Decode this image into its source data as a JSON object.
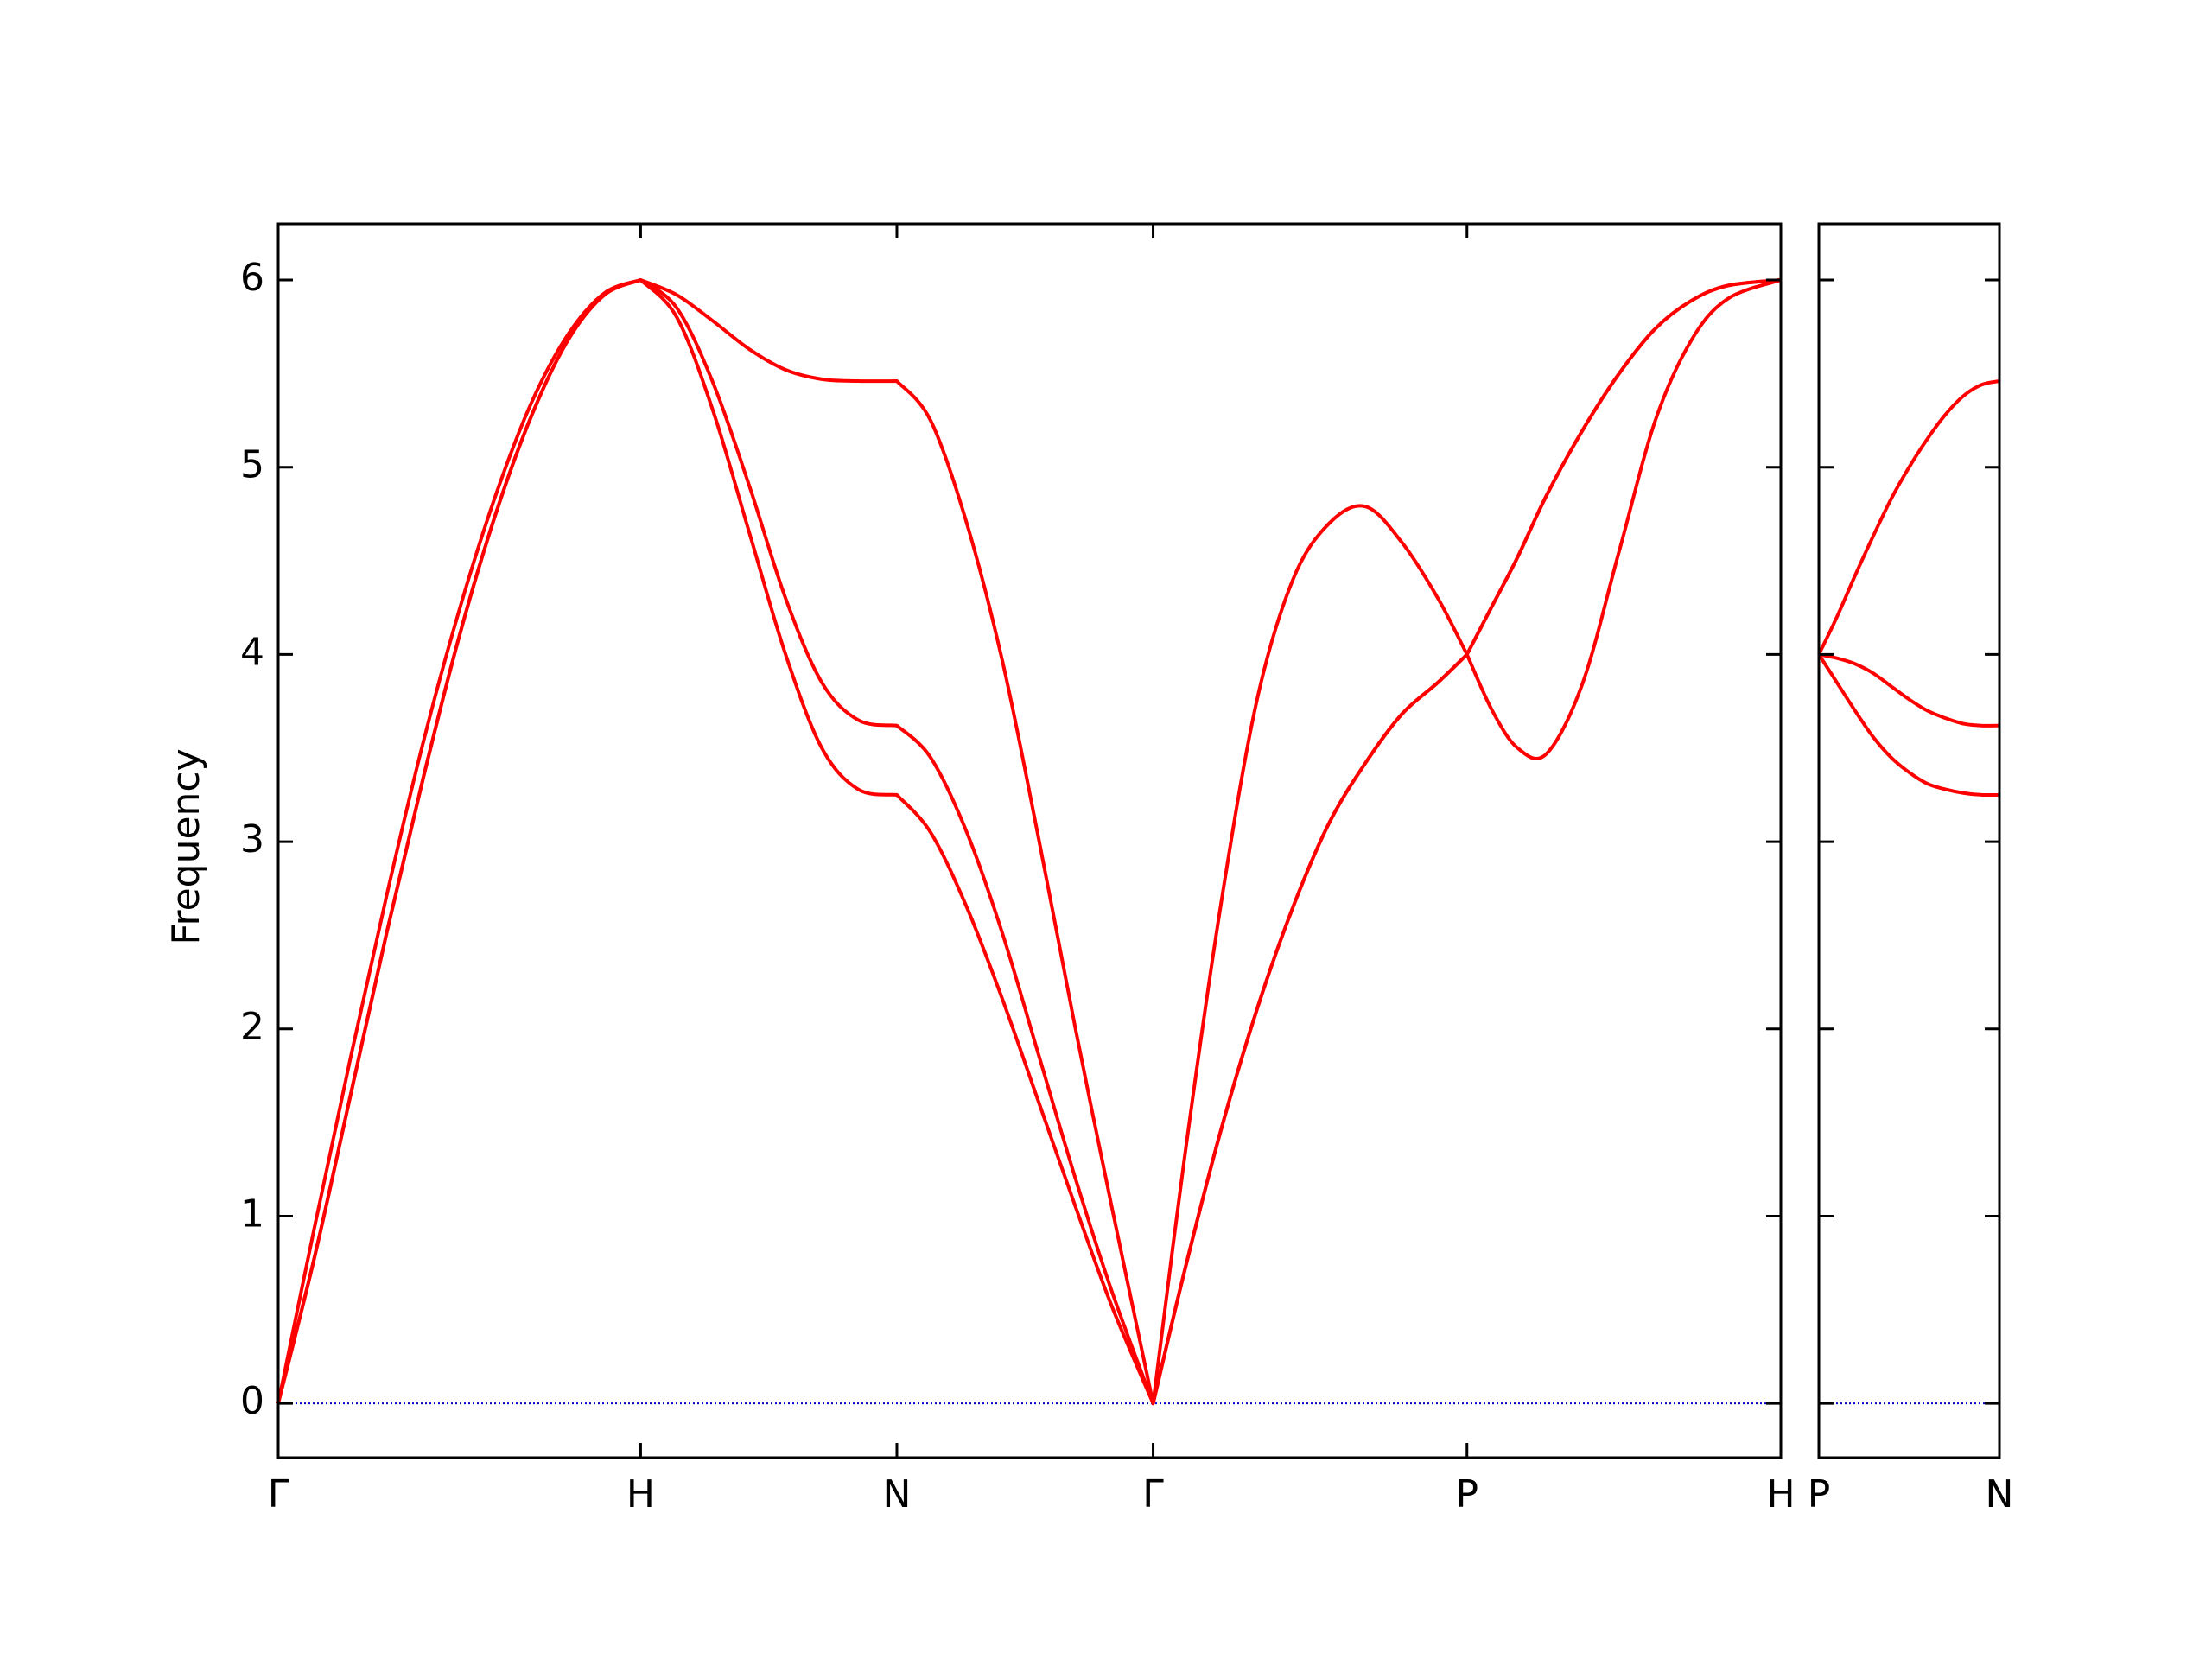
{
  "chart_data": [
    {
      "type": "line",
      "ylabel": "Frequency",
      "x": [
        0,
        0.1,
        0.2,
        0.3,
        0.4,
        0.5,
        0.6,
        0.7,
        0.8,
        0.9,
        1.0,
        1.1,
        1.2,
        1.3,
        1.4,
        1.5,
        1.6,
        1.7071,
        1.8,
        1.9,
        2.0,
        2.1,
        2.2,
        2.3,
        2.4142,
        2.5,
        2.6,
        2.7,
        2.8,
        2.9,
        3.0,
        3.1,
        3.2,
        3.2802,
        3.35,
        3.42,
        3.5,
        3.6,
        3.7,
        3.8,
        3.9,
        4.0,
        4.1463
      ],
      "xlim": [
        0,
        4.1463
      ],
      "xticks": [
        {
          "value": 0,
          "label": "Γ"
        },
        {
          "value": 1.0,
          "label": "H"
        },
        {
          "value": 1.7071,
          "label": "N"
        },
        {
          "value": 2.4142,
          "label": "Γ"
        },
        {
          "value": 3.2802,
          "label": "P"
        },
        {
          "value": 4.1463,
          "label": "H"
        }
      ],
      "ylim": [
        -0.29,
        6.3
      ],
      "yticks": [
        0,
        1,
        2,
        3,
        4,
        5,
        6
      ],
      "ytick_labels": true,
      "zero_line": {
        "y": 0,
        "color": "#0000cd",
        "style": "dotted"
      },
      "series": [
        {
          "color": "#ff0000",
          "values": [
            0,
            0.78,
            1.65,
            2.52,
            3.34,
            4.1,
            4.75,
            5.28,
            5.68,
            5.92,
            6.0,
            5.8,
            5.3,
            4.65,
            4.0,
            3.5,
            3.28,
            3.25,
            3.05,
            2.65,
            2.15,
            1.6,
            1.05,
            0.52,
            0,
            0.7,
            1.45,
            2.1,
            2.65,
            3.1,
            3.42,
            3.68,
            3.85,
            4.0,
            4.26,
            4.52,
            4.85,
            5.2,
            5.5,
            5.74,
            5.89,
            5.97,
            6.0
          ]
        },
        {
          "color": "#ff0000",
          "values": [
            0,
            0.78,
            1.65,
            2.52,
            3.34,
            4.1,
            4.75,
            5.28,
            5.68,
            5.92,
            6.0,
            5.85,
            5.45,
            4.9,
            4.3,
            3.85,
            3.65,
            3.62,
            3.45,
            3.05,
            2.5,
            1.85,
            1.2,
            0.6,
            0,
            0.7,
            1.45,
            2.1,
            2.65,
            3.1,
            3.42,
            3.68,
            3.85,
            4.0,
            4.26,
            4.52,
            4.85,
            5.2,
            5.5,
            5.74,
            5.89,
            5.97,
            6.0
          ]
        },
        {
          "color": "#ff0000",
          "values": [
            0,
            0.94,
            1.85,
            2.72,
            3.53,
            4.24,
            4.85,
            5.35,
            5.71,
            5.93,
            6.0,
            5.92,
            5.78,
            5.63,
            5.52,
            5.47,
            5.46,
            5.46,
            5.25,
            4.7,
            3.95,
            3.0,
            2.0,
            1.05,
            0,
            1.3,
            2.65,
            3.75,
            4.4,
            4.7,
            4.79,
            4.6,
            4.3,
            4.0,
            3.7,
            3.5,
            3.47,
            3.85,
            4.55,
            5.25,
            5.68,
            5.9,
            6.0
          ]
        }
      ]
    },
    {
      "type": "line",
      "x": [
        0,
        0.05,
        0.1,
        0.15,
        0.2,
        0.25,
        0.3,
        0.35,
        0.4,
        0.45,
        0.5
      ],
      "xlim": [
        0,
        0.5
      ],
      "xticks": [
        {
          "value": 0,
          "label": "P"
        },
        {
          "value": 0.5,
          "label": "N"
        }
      ],
      "ylim": [
        -0.29,
        6.3
      ],
      "yticks": [
        0,
        1,
        2,
        3,
        4,
        5,
        6
      ],
      "ytick_labels": false,
      "zero_line": {
        "y": 0,
        "color": "#0000cd",
        "style": "dotted"
      },
      "series": [
        {
          "color": "#ff0000",
          "values": [
            4.0,
            4.2,
            4.42,
            4.63,
            4.83,
            5.0,
            5.15,
            5.28,
            5.38,
            5.44,
            5.46
          ]
        },
        {
          "color": "#ff0000",
          "values": [
            4.0,
            3.98,
            3.95,
            3.9,
            3.83,
            3.76,
            3.7,
            3.66,
            3.63,
            3.62,
            3.62
          ]
        },
        {
          "color": "#ff0000",
          "values": [
            4.0,
            3.85,
            3.7,
            3.56,
            3.45,
            3.37,
            3.31,
            3.28,
            3.26,
            3.25,
            3.25
          ]
        }
      ]
    }
  ]
}
